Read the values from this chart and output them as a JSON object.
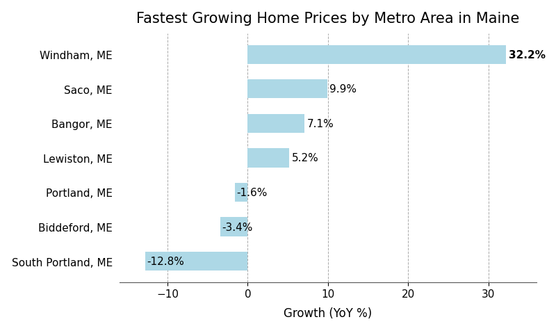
{
  "title": "Fastest Growing Home Prices by Metro Area in Maine",
  "xlabel": "Growth (YoY %)",
  "categories": [
    "Windham, ME",
    "Saco, ME",
    "Bangor, ME",
    "Lewiston, ME",
    "Portland, ME",
    "Biddeford, ME",
    "South Portland, ME"
  ],
  "values": [
    32.2,
    9.9,
    7.1,
    5.2,
    -1.6,
    -3.4,
    -12.8
  ],
  "bar_color": "#add8e6",
  "label_color": "#000000",
  "xlim": [
    -16,
    36
  ],
  "xticks": [
    -10,
    0,
    10,
    20,
    30
  ],
  "grid_color": "#aaaaaa",
  "background_color": "#ffffff",
  "title_fontsize": 15,
  "label_fontsize": 11,
  "tick_fontsize": 11,
  "bar_height": 0.55
}
